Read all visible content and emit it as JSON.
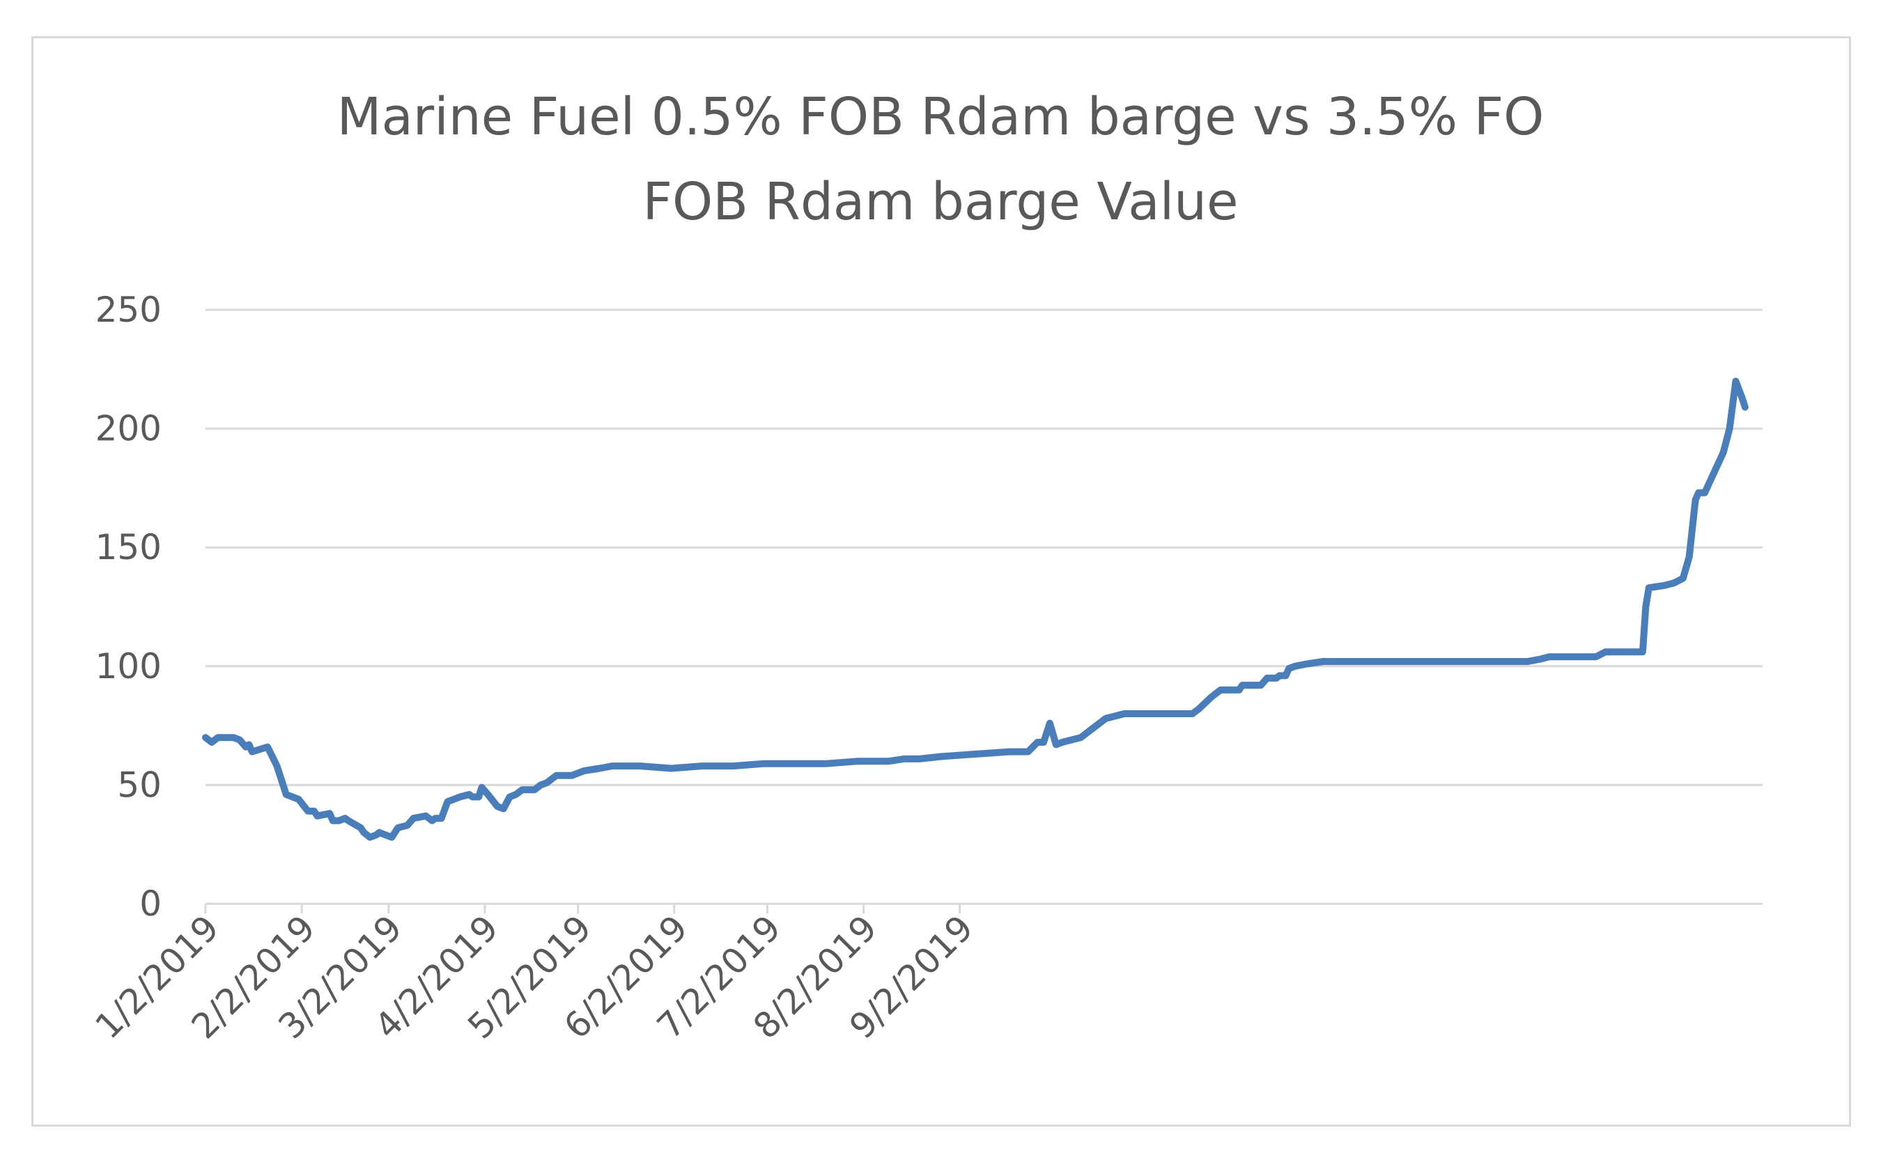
{
  "chart_data": {
    "type": "line",
    "title_line1": "Marine Fuel 0.5% FOB Rdam barge vs 3.5% FO",
    "title_line2": "FOB Rdam barge Value",
    "xlabel": "",
    "ylabel": "",
    "ylim": [
      0,
      250
    ],
    "y_ticks": [
      "0",
      "50",
      "100",
      "150",
      "200",
      "250"
    ],
    "grid": true,
    "legend": "none",
    "line_color": "#4a7ebb",
    "x_tick_labels": [
      "1/2/2019",
      "2/2/2019",
      "3/2/2019",
      "4/2/2019",
      "5/2/2019",
      "6/2/2019",
      "7/2/2019",
      "8/2/2019",
      "9/2/2019"
    ],
    "series": [
      {
        "name": "Value",
        "points": [
          [
            0,
            70
          ],
          [
            2,
            68
          ],
          [
            4,
            70
          ],
          [
            9,
            70
          ],
          [
            11,
            69
          ],
          [
            13,
            66
          ],
          [
            14,
            67
          ],
          [
            15,
            64
          ],
          [
            20,
            66
          ],
          [
            23,
            58
          ],
          [
            26,
            46
          ],
          [
            30,
            44
          ],
          [
            33,
            39
          ],
          [
            35,
            39
          ],
          [
            36,
            37
          ],
          [
            40,
            38
          ],
          [
            41,
            35
          ],
          [
            43,
            35
          ],
          [
            45,
            36
          ],
          [
            46,
            35
          ],
          [
            50,
            32
          ],
          [
            51,
            30
          ],
          [
            53,
            28
          ],
          [
            55,
            29
          ],
          [
            56,
            30
          ],
          [
            58,
            29
          ],
          [
            60,
            28
          ],
          [
            62,
            32
          ],
          [
            65,
            33
          ],
          [
            67,
            36
          ],
          [
            71,
            37
          ],
          [
            73,
            35
          ],
          [
            74,
            36
          ],
          [
            76,
            36
          ],
          [
            78,
            43
          ],
          [
            82,
            45
          ],
          [
            85,
            46
          ],
          [
            86,
            45
          ],
          [
            88,
            45
          ],
          [
            89,
            49
          ],
          [
            91,
            46
          ],
          [
            94,
            41
          ],
          [
            96,
            40
          ],
          [
            98,
            45
          ],
          [
            100,
            46
          ],
          [
            102,
            48
          ],
          [
            106,
            48
          ],
          [
            108,
            50
          ],
          [
            110,
            51
          ],
          [
            113,
            54
          ],
          [
            118,
            54
          ],
          [
            120,
            55
          ],
          [
            122,
            56
          ],
          [
            127,
            57
          ],
          [
            131,
            58
          ],
          [
            140,
            58
          ],
          [
            150,
            57
          ],
          [
            160,
            58
          ],
          [
            170,
            58
          ],
          [
            180,
            59
          ],
          [
            190,
            59
          ],
          [
            200,
            59
          ],
          [
            210,
            60
          ],
          [
            220,
            60
          ],
          [
            225,
            61
          ],
          [
            230,
            61
          ],
          [
            237,
            62
          ],
          [
            248,
            63
          ],
          [
            259,
            64
          ],
          [
            265,
            64
          ],
          [
            268,
            68
          ],
          [
            270,
            68
          ],
          [
            272,
            76
          ],
          [
            274,
            67
          ],
          [
            276,
            68
          ],
          [
            282,
            70
          ],
          [
            286,
            74
          ],
          [
            290,
            78
          ],
          [
            296,
            80
          ],
          [
            302,
            80
          ],
          [
            312,
            80
          ],
          [
            318,
            80
          ],
          [
            320,
            82
          ],
          [
            324,
            87
          ],
          [
            327,
            90
          ],
          [
            333,
            90
          ],
          [
            334,
            92
          ],
          [
            340,
            92
          ],
          [
            342,
            95
          ],
          [
            345,
            95
          ],
          [
            346,
            96
          ],
          [
            348,
            96
          ],
          [
            349,
            99
          ],
          [
            351,
            100
          ],
          [
            355,
            101
          ],
          [
            360,
            102
          ],
          [
            375,
            102
          ],
          [
            400,
            102
          ],
          [
            426,
            102
          ],
          [
            430,
            103
          ],
          [
            433,
            104
          ],
          [
            440,
            104
          ],
          [
            448,
            104
          ],
          [
            451,
            106
          ],
          [
            459,
            106
          ],
          [
            463,
            106
          ],
          [
            464,
            125
          ],
          [
            465,
            133
          ],
          [
            470,
            134
          ],
          [
            473,
            135
          ],
          [
            476,
            137
          ],
          [
            478,
            146
          ],
          [
            480,
            170
          ],
          [
            481,
            173
          ],
          [
            483,
            173
          ],
          [
            489,
            190
          ],
          [
            491,
            200
          ],
          [
            493,
            220
          ],
          [
            495,
            213
          ],
          [
            496,
            209
          ]
        ]
      }
    ]
  }
}
